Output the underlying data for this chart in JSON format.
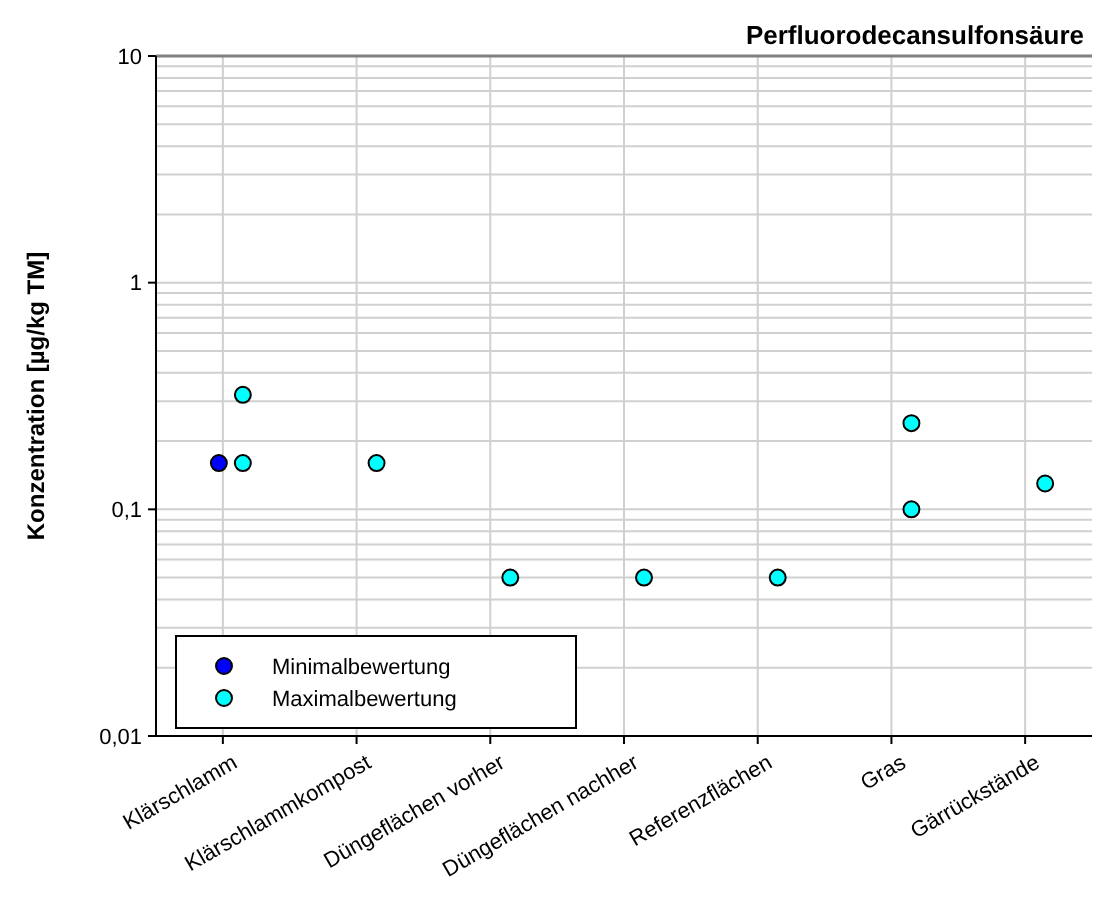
{
  "chart_data": {
    "type": "scatter",
    "title": "Perfluorodecansulfonsäure",
    "ylabel": "Konzentration [µg/kg TM]",
    "categories": [
      "Klärschlamm",
      "Klärschlammkompost",
      "Düngeflächen vorher",
      "Düngeflächen nachher",
      "Referenzflächen",
      "Gras",
      "Gärrückstände"
    ],
    "series": [
      {
        "name": "Minimalbewertung",
        "color": "#0000ff",
        "x": [
          "Klärschlamm"
        ],
        "values": [
          0.16
        ]
      },
      {
        "name": "Maximalbewertung",
        "color": "#00ffff",
        "x": [
          "Klärschlamm",
          "Klärschlamm",
          "Klärschlammkompost",
          "Düngeflächen vorher",
          "Düngeflächen nachher",
          "Referenzflächen",
          "Gras",
          "Gras",
          "Gärrückstände"
        ],
        "values": [
          0.32,
          0.16,
          0.16,
          0.05,
          0.05,
          0.05,
          0.24,
          0.1,
          0.13
        ]
      }
    ],
    "log": "y",
    "ylim": [
      0.01,
      10
    ],
    "yticks": [
      {
        "value": 0.01,
        "label": "0,01"
      },
      {
        "value": 0.02,
        "label": null
      },
      {
        "value": 0.03,
        "label": null
      },
      {
        "value": 0.04,
        "label": null
      },
      {
        "value": 0.05,
        "label": null
      },
      {
        "value": 0.06,
        "label": null
      },
      {
        "value": 0.07,
        "label": null
      },
      {
        "value": 0.08,
        "label": null
      },
      {
        "value": 0.09,
        "label": null
      },
      {
        "value": 0.1,
        "label": "0,1"
      },
      {
        "value": 0.2,
        "label": null
      },
      {
        "value": 0.3,
        "label": null
      },
      {
        "value": 0.4,
        "label": null
      },
      {
        "value": 0.5,
        "label": null
      },
      {
        "value": 0.6,
        "label": null
      },
      {
        "value": 0.7,
        "label": null
      },
      {
        "value": 0.8,
        "label": null
      },
      {
        "value": 0.9,
        "label": null
      },
      1,
      {
        "value": 2,
        "label": null
      },
      {
        "value": 3,
        "label": null
      },
      {
        "value": 4,
        "label": null
      },
      {
        "value": 5,
        "label": null
      },
      {
        "value": 6,
        "label": null
      },
      {
        "value": 7,
        "label": null
      },
      {
        "value": 8,
        "label": null
      },
      {
        "value": 9,
        "label": null
      },
      10
    ],
    "grid": true,
    "legend": "bottom left",
    "marker": "circle"
  }
}
